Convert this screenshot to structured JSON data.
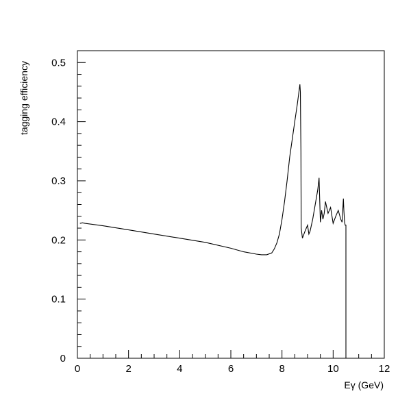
{
  "chart_data": {
    "type": "line",
    "title": "",
    "xlabel": "Eγ (GeV)",
    "ylabel": "tagging efficiency",
    "xlim": [
      0,
      12
    ],
    "ylim": [
      0,
      0.52
    ],
    "xticks": [
      0,
      2,
      4,
      6,
      8,
      10,
      12
    ],
    "xtick_labels": [
      "0",
      "2",
      "4",
      "6",
      "8",
      "10",
      "12"
    ],
    "yticks": [
      0,
      0.1,
      0.2,
      0.3,
      0.4,
      0.5
    ],
    "ytick_labels": [
      "0",
      "0.1",
      "0.2",
      "0.3",
      "0.4",
      "0.5"
    ],
    "grid": false,
    "legend": "none",
    "series": [
      {
        "x": [
          0.1,
          0.2,
          0.3,
          1,
          2,
          3,
          4,
          5,
          6,
          6.5,
          7,
          7.2,
          7.4,
          7.6,
          7.7,
          7.8,
          7.9,
          8.0,
          8.1,
          8.2,
          8.3,
          8.4,
          8.5,
          8.6,
          8.7,
          8.72,
          8.74,
          8.75,
          8.8,
          8.9,
          9.0,
          9.05,
          9.1,
          9.2,
          9.3,
          9.4,
          9.45,
          9.5,
          9.55,
          9.6,
          9.65,
          9.7,
          9.8,
          9.9,
          10.0,
          10.1,
          10.2,
          10.3,
          10.35,
          10.4,
          10.42,
          10.45,
          10.47,
          10.5,
          10.5
        ],
        "y": [
          0.228,
          0.229,
          0.228,
          0.224,
          0.217,
          0.21,
          0.203,
          0.196,
          0.186,
          0.18,
          0.176,
          0.175,
          0.175,
          0.178,
          0.185,
          0.195,
          0.21,
          0.235,
          0.265,
          0.3,
          0.34,
          0.37,
          0.4,
          0.43,
          0.463,
          0.45,
          0.35,
          0.22,
          0.203,
          0.215,
          0.225,
          0.21,
          0.215,
          0.235,
          0.26,
          0.285,
          0.305,
          0.23,
          0.25,
          0.235,
          0.245,
          0.265,
          0.245,
          0.255,
          0.228,
          0.24,
          0.25,
          0.235,
          0.23,
          0.27,
          0.25,
          0.23,
          0.225,
          0.225,
          0
        ]
      }
    ]
  }
}
